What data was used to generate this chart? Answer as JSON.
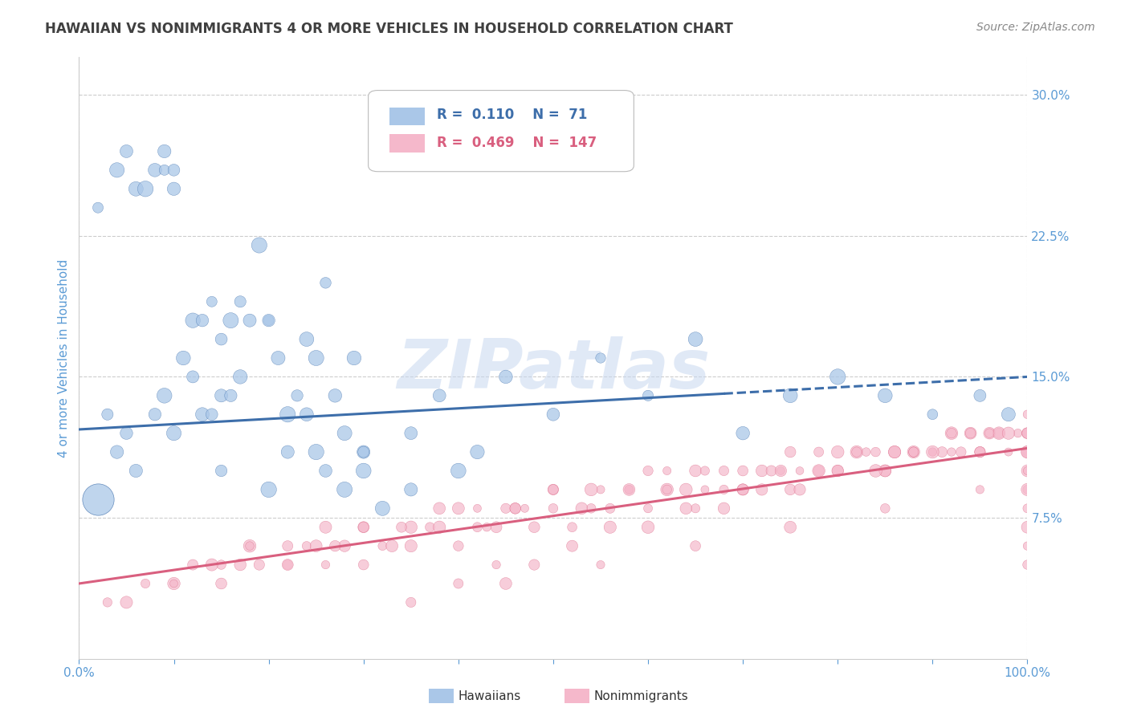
{
  "title": "HAWAIIAN VS NONIMMIGRANTS 4 OR MORE VEHICLES IN HOUSEHOLD CORRELATION CHART",
  "source": "Source: ZipAtlas.com",
  "ylabel": "4 or more Vehicles in Household",
  "xlim": [
    0,
    100
  ],
  "ylim": [
    0,
    32
  ],
  "yticks": [
    7.5,
    15.0,
    22.5,
    30.0
  ],
  "yticklabels": [
    "7.5%",
    "15.0%",
    "22.5%",
    "30.0%"
  ],
  "hawaiian_R": 0.11,
  "hawaiian_N": 71,
  "nonimmigrant_R": 0.469,
  "nonimmigrant_N": 147,
  "hawaiian_color": "#aac7e8",
  "nonimmigrant_color": "#f5b8cb",
  "hawaiian_line_color": "#3d6eaa",
  "nonimmigrant_line_color": "#d95f7f",
  "hawaiian_line_y0": 12.2,
  "hawaiian_line_y100": 15.0,
  "nonimmigrant_line_y0": 4.0,
  "nonimmigrant_line_y100": 11.2,
  "solid_to_dash_x": 68,
  "watermark_text": "ZIPatlas",
  "background_color": "#ffffff",
  "grid_color": "#cccccc",
  "title_color": "#404040",
  "tick_label_color": "#5b9bd5",
  "axis_label_color": "#5b9bd5",
  "hawaiian_scatter_x": [
    2,
    4,
    5,
    6,
    7,
    8,
    9,
    9,
    10,
    10,
    11,
    12,
    13,
    14,
    15,
    16,
    17,
    18,
    19,
    20,
    21,
    22,
    23,
    24,
    25,
    26,
    27,
    28,
    29,
    30,
    3,
    4,
    5,
    6,
    8,
    9,
    10,
    12,
    13,
    14,
    15,
    16,
    17,
    20,
    22,
    24,
    26,
    28,
    30,
    32,
    35,
    38,
    42,
    45,
    50,
    55,
    60,
    65,
    70,
    75,
    80,
    85,
    90,
    95,
    98,
    15,
    20,
    25,
    30,
    35,
    40
  ],
  "hawaiian_scatter_y": [
    24,
    26,
    27,
    25,
    25,
    26,
    27,
    26,
    26,
    25,
    16,
    18,
    18,
    19,
    17,
    18,
    19,
    18,
    22,
    18,
    16,
    13,
    14,
    13,
    16,
    20,
    14,
    12,
    16,
    11,
    13,
    11,
    12,
    10,
    13,
    14,
    12,
    15,
    13,
    13,
    14,
    14,
    15,
    18,
    11,
    17,
    10,
    9,
    11,
    8,
    12,
    14,
    11,
    15,
    13,
    16,
    14,
    17,
    12,
    14,
    15,
    14,
    13,
    14,
    13,
    10,
    9,
    11,
    10,
    9,
    10
  ],
  "hawaiian_scatter_big_x": [
    2
  ],
  "hawaiian_scatter_big_y": [
    8.5
  ],
  "nonimmigrant_scatter_x": [
    3,
    5,
    7,
    10,
    12,
    15,
    17,
    19,
    22,
    24,
    26,
    28,
    30,
    32,
    35,
    37,
    40,
    42,
    44,
    46,
    48,
    50,
    52,
    54,
    56,
    58,
    60,
    62,
    64,
    65,
    66,
    68,
    70,
    72,
    74,
    75,
    76,
    78,
    80,
    82,
    84,
    85,
    86,
    88,
    90,
    91,
    92,
    93,
    94,
    95,
    96,
    97,
    98,
    99,
    100,
    15,
    18,
    22,
    25,
    27,
    30,
    33,
    35,
    38,
    40,
    43,
    45,
    47,
    50,
    53,
    55,
    58,
    60,
    62,
    65,
    68,
    70,
    73,
    75,
    78,
    80,
    83,
    85,
    88,
    90,
    92,
    95,
    97,
    100,
    10,
    14,
    18,
    22,
    26,
    30,
    34,
    38,
    42,
    46,
    50,
    54,
    58,
    62,
    66,
    70,
    74,
    78,
    82,
    86,
    90,
    94,
    98,
    40,
    44,
    48,
    52,
    56,
    60,
    64,
    68,
    72,
    76,
    80,
    84,
    88,
    92,
    96,
    100,
    35,
    45,
    55,
    65,
    75,
    85,
    95,
    100,
    100,
    100,
    100,
    100,
    100,
    100,
    100,
    100,
    100,
    100,
    100
  ],
  "nonimmigrant_scatter_y": [
    3,
    3,
    4,
    4,
    5,
    4,
    5,
    5,
    5,
    6,
    5,
    6,
    5,
    6,
    6,
    7,
    6,
    7,
    7,
    8,
    7,
    8,
    7,
    8,
    8,
    9,
    8,
    9,
    9,
    8,
    9,
    9,
    9,
    10,
    10,
    9,
    10,
    10,
    10,
    11,
    11,
    10,
    11,
    11,
    11,
    11,
    12,
    11,
    12,
    11,
    12,
    12,
    11,
    12,
    13,
    5,
    6,
    5,
    6,
    6,
    7,
    6,
    7,
    7,
    8,
    7,
    8,
    8,
    9,
    8,
    9,
    9,
    10,
    9,
    10,
    10,
    9,
    10,
    11,
    10,
    11,
    11,
    10,
    11,
    11,
    12,
    11,
    12,
    12,
    4,
    5,
    6,
    6,
    7,
    7,
    7,
    8,
    8,
    8,
    9,
    9,
    9,
    10,
    10,
    10,
    10,
    11,
    11,
    11,
    11,
    12,
    12,
    4,
    5,
    5,
    6,
    7,
    7,
    8,
    8,
    9,
    9,
    10,
    10,
    11,
    11,
    12,
    11,
    3,
    4,
    5,
    6,
    7,
    8,
    9,
    5,
    6,
    7,
    8,
    9,
    10,
    11,
    12,
    9,
    10,
    11,
    12
  ]
}
